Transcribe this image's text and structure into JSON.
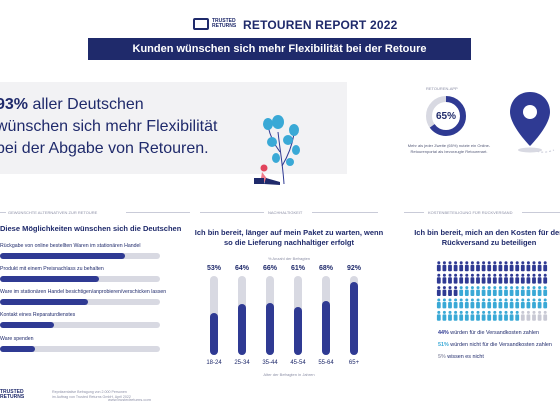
{
  "brand": {
    "name_line1": "TRUSTED",
    "name_line2": "RETURNS"
  },
  "header": {
    "report_title": "RETOUREN REPORT 2022",
    "banner": "Kunden wünschen sich mehr Flexibilität bei der Retoure"
  },
  "hero": {
    "stat": "93%",
    "line1_rest": " aller Deutschen",
    "line2": "wünschen sich mehr Flexibilität",
    "line3": "bei der Abgabe von Retouren."
  },
  "donut": {
    "label": "RETOUREN-APP",
    "value_text": "65%",
    "value": 65,
    "caption": "Mehr als jeder Zweite (65%) nutzte ein Online-Retourenportal als bevorzugte Retourenart."
  },
  "section1": {
    "label": "GEWÜNSCHTE ALTERNATIVEN ZUR RETOURE",
    "title": "Diese Möglichkeiten wünschen sich die Deutschen",
    "options": [
      {
        "label": "Rückgabe von online bestellten Waren im stationären Handel",
        "value": 0.78
      },
      {
        "label": "Produkt mit einem Preisnachlass zu behalten",
        "value": 0.62
      },
      {
        "label": "Ware im stationären Handel besichtigen/anprobieren/verschicken lassen",
        "value": 0.55
      },
      {
        "label": "Kontakt eines Reparaturdienstes",
        "value": 0.34
      },
      {
        "label": "Ware spenden",
        "value": 0.22
      }
    ]
  },
  "section2": {
    "label": "NACHHALTIGKEIT",
    "title": "Ich bin bereit, länger auf mein Paket zu warten, wenn so die Lieferung nachhaltiger erfolgt",
    "sub": "% Anzahl der Befragten",
    "axis_label": "Alter der Befragten in Jahren",
    "chart_data": {
      "type": "bar",
      "categories": [
        "18-24",
        "25-34",
        "35-44",
        "45-54",
        "55-64",
        "65+"
      ],
      "values": [
        53,
        64,
        66,
        61,
        68,
        92
      ],
      "value_labels": [
        "53%",
        "64%",
        "66%",
        "61%",
        "68%",
        "92%"
      ],
      "ylim": [
        0,
        100
      ]
    }
  },
  "section3": {
    "label": "KOSTENBETEILIGUNG FÜR RÜCKVERSAND",
    "title": "Ich bin bereit, mich an den Kosten für den Rückversand zu beteiligen",
    "legend": [
      {
        "pct": "44%",
        "text": " würden für die Versandkosten zahlen",
        "color": "#2f3a93"
      },
      {
        "pct": "51%",
        "text": " würden nicht für die Versandkosten zahlen",
        "color": "#3aa9d6"
      },
      {
        "pct": "5%",
        "text": " wissen es nicht",
        "color": "#c8c9d4"
      }
    ],
    "shares": [
      44,
      51,
      5
    ]
  },
  "footer": {
    "brand_line1": "TRUSTED",
    "brand_line2": "RETURNS",
    "note_line1": "Repräsentative Befragung von 2.000 Personen",
    "note_line2": "im Auftrag von Trusted Returns GmbH, April 2022",
    "url": "www.trustedreturns.com"
  }
}
